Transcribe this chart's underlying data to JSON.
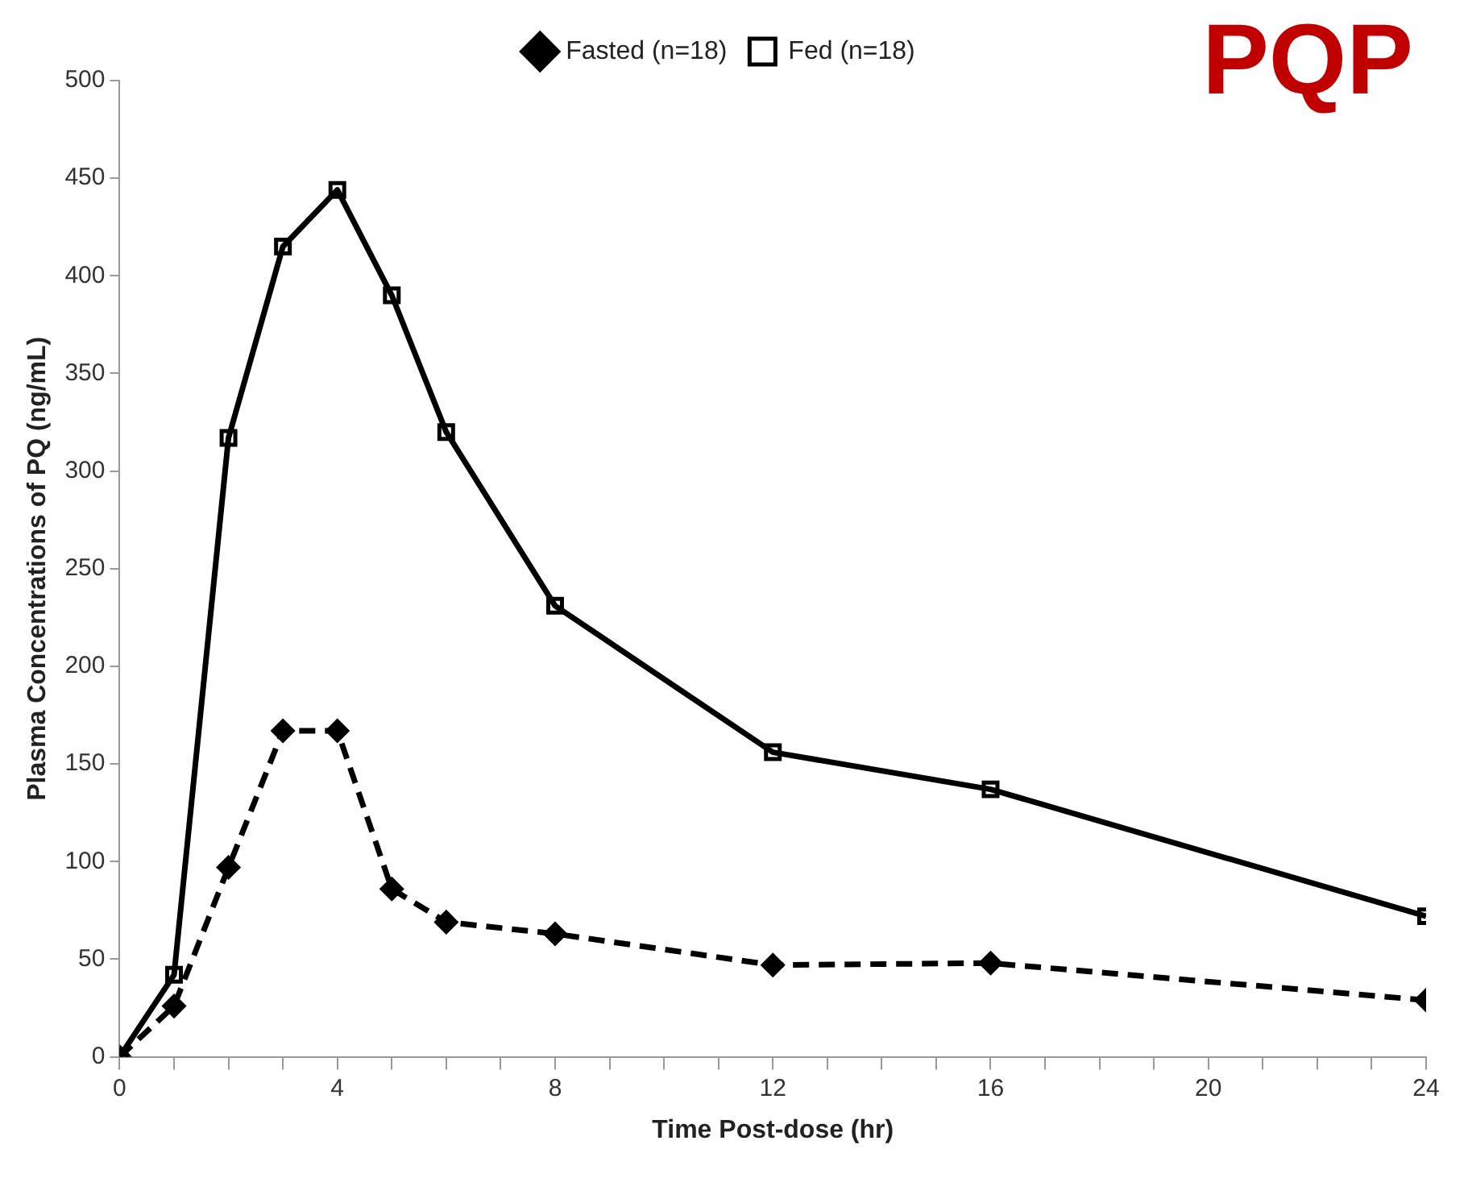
{
  "chart_data": {
    "type": "line",
    "xlabel": "Time Post-dose (hr)",
    "ylabel": "Plasma Concentrations of PQ (ng/mL)",
    "annotations": [
      "PQP"
    ],
    "xlim": [
      0,
      24
    ],
    "xticks": [
      0,
      {
        "value": 1,
        "label": null
      },
      {
        "value": 2,
        "label": null
      },
      {
        "value": 3,
        "label": null
      },
      4,
      {
        "value": 5,
        "label": null
      },
      {
        "value": 6,
        "label": null
      },
      {
        "value": 7,
        "label": null
      },
      8,
      {
        "value": 9,
        "label": null
      },
      {
        "value": 10,
        "label": null
      },
      {
        "value": 11,
        "label": null
      },
      12,
      {
        "value": 13,
        "label": null
      },
      {
        "value": 14,
        "label": null
      },
      {
        "value": 15,
        "label": null
      },
      16,
      {
        "value": 17,
        "label": null
      },
      {
        "value": 18,
        "label": null
      },
      {
        "value": 19,
        "label": null
      },
      20,
      {
        "value": 21,
        "label": null
      },
      {
        "value": 22,
        "label": null
      },
      {
        "value": 23,
        "label": null
      },
      24
    ],
    "ylim": [
      0,
      500
    ],
    "yticks": [
      0,
      50,
      100,
      150,
      200,
      250,
      300,
      350,
      400,
      450,
      500
    ],
    "grid": false,
    "legend": "top right",
    "x": [
      0,
      1,
      2,
      3,
      4,
      5,
      6,
      8,
      12,
      16,
      24
    ],
    "series": [
      {
        "name": "Fasted (n=18)",
        "color": "#000000",
        "marker": "diamond",
        "line_style": "dashed",
        "values": [
          0,
          26,
          97,
          167,
          167,
          86,
          69,
          63,
          47,
          48,
          29
        ]
      },
      {
        "name": "Fed (n=18)",
        "color": "#000000",
        "marker": "square",
        "line_style": "solid",
        "values": [
          0,
          42,
          317,
          415,
          444,
          390,
          320,
          231,
          156,
          137,
          72
        ]
      }
    ]
  }
}
